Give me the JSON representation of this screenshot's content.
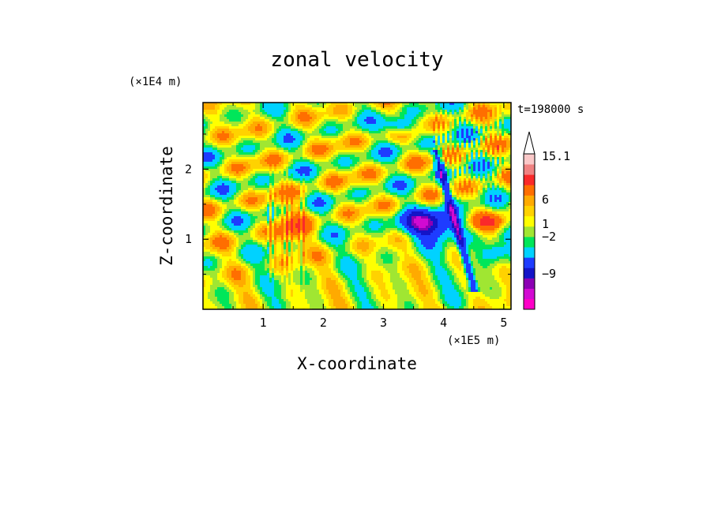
{
  "chart_data": {
    "type": "heatmap",
    "title": "zonal velocity",
    "xlabel": "X-coordinate",
    "ylabel": "Z-coordinate",
    "x_scale_label": "(×1E5 m)",
    "y_scale_label": "(×1E4 m)",
    "time_label": "t=198000 s",
    "xlim": [
      0,
      5.12
    ],
    "ylim": [
      0,
      2.95
    ],
    "x_ticks": [
      1,
      2,
      3,
      4,
      5
    ],
    "y_ticks": [
      1,
      2
    ],
    "colorbar": {
      "tick_labels": [
        "15.1",
        "6",
        "1",
        "−2",
        "−9"
      ],
      "levels": [
        {
          "color": "#ff00c8"
        },
        {
          "color": "#d20ad2"
        },
        {
          "color": "#8c00b4"
        },
        {
          "color": "#1414c8"
        },
        {
          "color": "#1e3cff"
        },
        {
          "color": "#00d2ff"
        },
        {
          "color": "#00e65a"
        },
        {
          "color": "#a0e632"
        },
        {
          "color": "#ffff00"
        },
        {
          "color": "#ffd200"
        },
        {
          "color": "#ffaa00"
        },
        {
          "color": "#ff6e00"
        },
        {
          "color": "#fa2a2a"
        },
        {
          "color": "#f08282"
        },
        {
          "color": "#fac8c8"
        }
      ]
    }
  }
}
